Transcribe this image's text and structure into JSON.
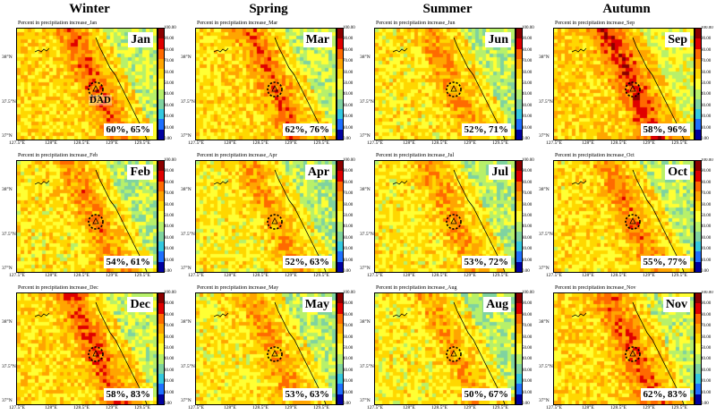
{
  "seasons": [
    "Winter",
    "Spring",
    "Summer",
    "Autumn"
  ],
  "panel_title_prefix": "Percent in precipitation increase_",
  "dad_label": "DAD",
  "lat_ticks": [
    "38°N",
    "37.5°N",
    "37°N"
  ],
  "lon_ticks": [
    "127.5°E",
    "128°E",
    "128.5°E",
    "129°E",
    "129.5°E"
  ],
  "colorbar": {
    "ticks": [
      "100.00",
      "90.00",
      "80.00",
      "70.00",
      "60.00",
      "50.00",
      "40.00",
      "30.00",
      "20.00",
      "10.00",
      "0.00"
    ],
    "colors": [
      "#8b0000",
      "#e00000",
      "#ff6a00",
      "#ffa500",
      "#ffd700",
      "#ffff33",
      "#b7f06a",
      "#7fd3a0",
      "#33c8e0",
      "#1e6fff",
      "#0000a0"
    ]
  },
  "panels": [
    {
      "season": "Winter",
      "row": 0,
      "col": 0,
      "title_month": "Jan",
      "label": "Jan",
      "stats": "60%, 65%",
      "show_dad": true
    },
    {
      "season": "Spring",
      "row": 0,
      "col": 1,
      "title_month": "Mar",
      "label": "Mar",
      "stats": "62%, 76%",
      "show_dad": false
    },
    {
      "season": "Summer",
      "row": 0,
      "col": 2,
      "title_month": "Jun",
      "label": "Jun",
      "stats": "52%, 71%",
      "show_dad": false
    },
    {
      "season": "Autumn",
      "row": 0,
      "col": 3,
      "title_month": "Sep",
      "label": "Sep",
      "stats": "58%, 96%",
      "show_dad": false
    },
    {
      "season": "Winter",
      "row": 1,
      "col": 0,
      "title_month": "Feb",
      "label": "Feb",
      "stats": "54%, 61%",
      "show_dad": false
    },
    {
      "season": "Spring",
      "row": 1,
      "col": 1,
      "title_month": "Apr",
      "label": "Apr",
      "stats": "52%, 63%",
      "show_dad": false
    },
    {
      "season": "Summer",
      "row": 1,
      "col": 2,
      "title_month": "Jul",
      "label": "Jul",
      "stats": "53%, 72%",
      "show_dad": false
    },
    {
      "season": "Autumn",
      "row": 1,
      "col": 3,
      "title_month": "Oct",
      "label": "Oct",
      "stats": "55%, 77%",
      "show_dad": false
    },
    {
      "season": "Winter",
      "row": 2,
      "col": 0,
      "title_month": "Dec",
      "label": "Dec",
      "stats": "58%, 83%",
      "show_dad": false
    },
    {
      "season": "Spring",
      "row": 2,
      "col": 1,
      "title_month": "May",
      "label": "May",
      "stats": "53%, 63%",
      "show_dad": false
    },
    {
      "season": "Summer",
      "row": 2,
      "col": 2,
      "title_month": "Aug",
      "label": "Aug",
      "stats": "50%, 67%",
      "show_dad": false
    },
    {
      "season": "Autumn",
      "row": 2,
      "col": 3,
      "title_month": "Nov",
      "label": "Nov",
      "stats": "62%, 83%",
      "show_dad": false
    }
  ]
}
